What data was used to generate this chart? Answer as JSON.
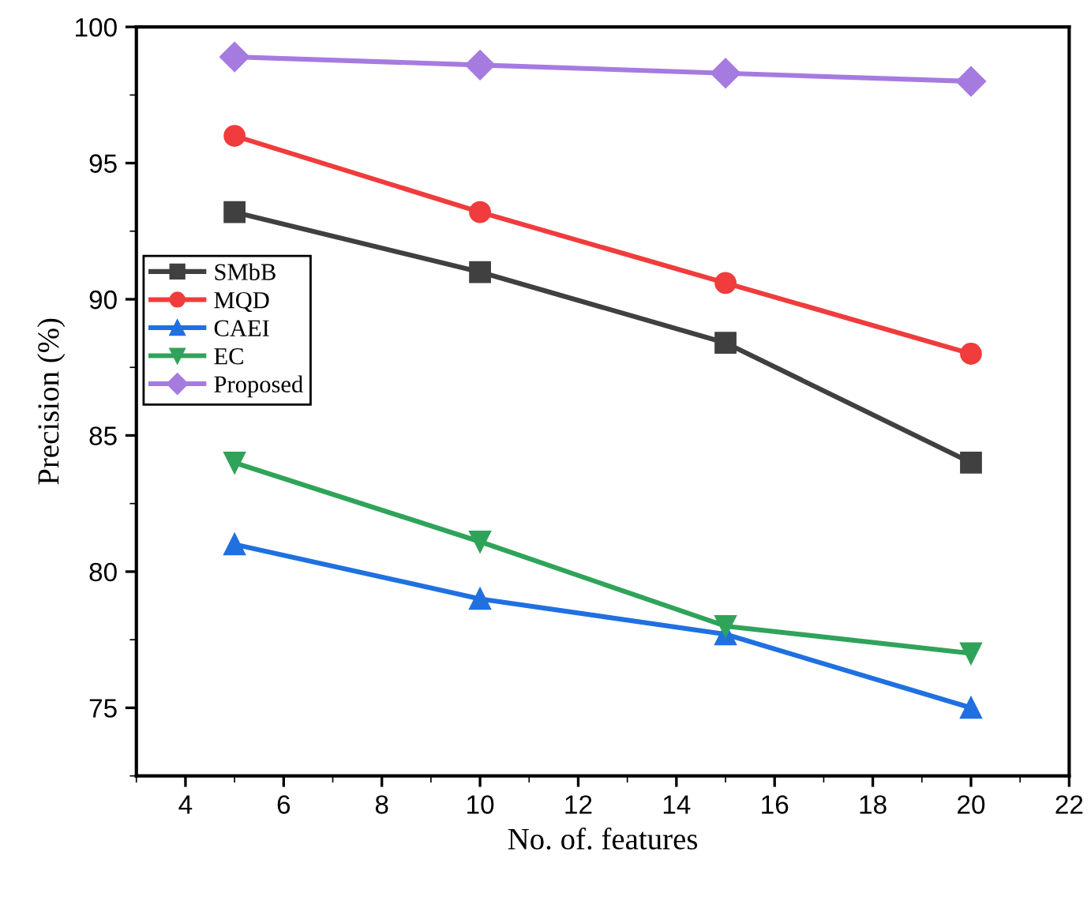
{
  "chart_data": {
    "type": "line",
    "xlabel": "No. of. features",
    "ylabel": "Precision (%)",
    "xlim": [
      3,
      22
    ],
    "xticks": [
      4,
      6,
      8,
      10,
      12,
      14,
      16,
      18,
      20,
      22
    ],
    "ylim": [
      72.5,
      100
    ],
    "yticks": [
      75,
      80,
      85,
      90,
      95,
      100
    ],
    "grid": false,
    "legend": "center left",
    "line_style": "solid",
    "series": [
      {
        "name": "SMbB",
        "color": "#404040",
        "marker": "square",
        "x": [
          5,
          10,
          15,
          20
        ],
        "values": [
          93.2,
          91.0,
          88.4,
          84.0
        ]
      },
      {
        "name": "MQD",
        "color": "#f03c3c",
        "marker": "circle",
        "x": [
          5,
          10,
          15,
          20
        ],
        "values": [
          96.0,
          93.2,
          90.6,
          88.0
        ]
      },
      {
        "name": "CAEI",
        "color": "#2070e0",
        "marker": "triangle",
        "x": [
          5,
          10,
          15,
          20
        ],
        "values": [
          81.0,
          79.0,
          77.7,
          75.0
        ]
      },
      {
        "name": "EC",
        "color": "#30a35a",
        "marker": "triangle_down",
        "x": [
          5,
          10,
          15,
          20
        ],
        "values": [
          84.0,
          81.1,
          78.0,
          77.0
        ]
      },
      {
        "name": "Proposed",
        "color": "#a67be0",
        "marker": "diamond",
        "x": [
          5,
          10,
          15,
          20
        ],
        "values": [
          98.9,
          98.6,
          98.3,
          98.0
        ]
      }
    ]
  }
}
